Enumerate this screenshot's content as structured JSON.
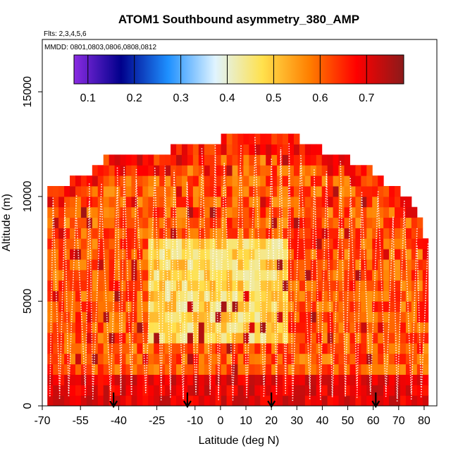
{
  "chart_data": {
    "type": "heatmap",
    "title": "ATOM1 Southbound asymmetry_380_AMP",
    "subtitle_flights": "Flts: 2,3,4,5,6",
    "subtitle_dates": "MMDD: 0801,0803,0806,0808,0812",
    "xlabel": "Latitude (deg N)",
    "ylabel": "Altitude (m)",
    "xlim": [
      -70,
      85
    ],
    "ylim": [
      0,
      17500
    ],
    "x_ticks": [
      -70,
      -55,
      -40,
      -25,
      -10,
      0,
      10,
      20,
      30,
      40,
      50,
      60,
      70,
      80
    ],
    "x_tick_labels": [
      "-70",
      "-55",
      "-40",
      "-25",
      "-10",
      "0",
      "10",
      "20",
      "30",
      "40",
      "50",
      "60",
      "70",
      "80"
    ],
    "y_ticks": [
      0,
      5000,
      10000,
      15000
    ],
    "y_tick_labels": [
      "0",
      "5000",
      "10000",
      "15000"
    ],
    "colorbar": {
      "min": 0.07,
      "max": 0.78,
      "ticks": [
        0.1,
        0.2,
        0.3,
        0.4,
        0.5,
        0.6,
        0.7
      ],
      "tick_labels": [
        "0.1",
        "0.2",
        "0.3",
        "0.4",
        "0.5",
        "0.6",
        "0.7"
      ],
      "stops": [
        "#8a2be2",
        "#00008b",
        "#1e90ff",
        "#e0f4ff",
        "#ffe14d",
        "#ff7f00",
        "#ff0000",
        "#8b1a1a"
      ]
    },
    "arrow_latitudes": [
      -42,
      -13,
      20,
      61
    ],
    "lat_range": [
      -68,
      80
    ],
    "alt_top_profile": [
      {
        "lat": -68,
        "alt": 10500
      },
      {
        "lat": -60,
        "alt": 11000
      },
      {
        "lat": -50,
        "alt": 11500
      },
      {
        "lat": -45,
        "alt": 12000
      },
      {
        "lat": -20,
        "alt": 12500
      },
      {
        "lat": 0,
        "alt": 13000
      },
      {
        "lat": 24,
        "alt": 13500
      },
      {
        "lat": 30,
        "alt": 13000
      },
      {
        "lat": 50,
        "alt": 12000
      },
      {
        "lat": 60,
        "alt": 11500
      },
      {
        "lat": 70,
        "alt": 10500
      },
      {
        "lat": 78,
        "alt": 9500
      },
      {
        "lat": 80,
        "alt": 8000
      }
    ],
    "low_value_region": {
      "lat": [
        -30,
        25
      ],
      "alt": [
        2500,
        8000
      ],
      "typical_value": 0.42
    },
    "boundary_layer": {
      "alt_max": 1500,
      "typical_value": 0.7
    }
  }
}
